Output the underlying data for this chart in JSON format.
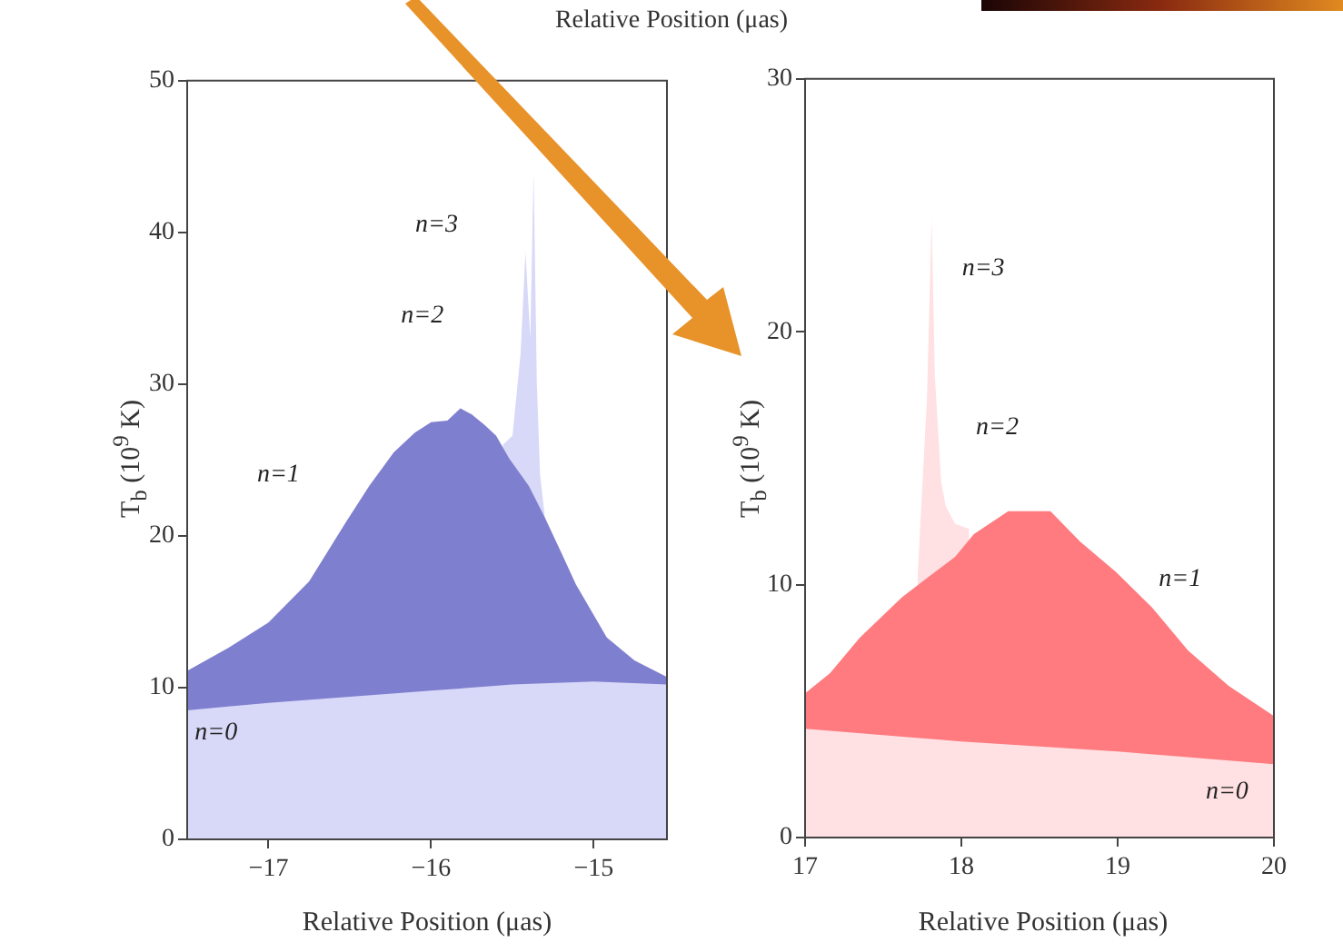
{
  "chart_data": [
    {
      "type": "other",
      "annotations": [
        "Relative Position (μas)"
      ]
    },
    {
      "type": "area",
      "xlabel": "Relative Position (μas)",
      "ylabel": "T$_{b}$ (10$^{9}$ K)",
      "xlim": [
        -17.5,
        -14.55
      ],
      "ylim": [
        0,
        50
      ],
      "xticks": [
        -17,
        -16,
        -15
      ],
      "yticks": [
        0,
        10,
        20,
        30,
        40,
        50
      ],
      "grid": false,
      "legend": false,
      "series": [
        {
          "color": "#d8d8f8",
          "x": [
            -15.56,
            -15.5,
            -15.45,
            -15.42,
            -15.39,
            -15.37,
            -15.35,
            -15.33,
            -15.3
          ],
          "values": [
            26.0,
            26.6,
            32.0,
            38.7,
            33.0,
            44.0,
            30.0,
            24.0,
            21.2
          ]
        },
        {
          "color": "#7f7fd0",
          "x": [
            -17.5,
            -17.25,
            -17,
            -16.75,
            -16.53,
            -16.38,
            -16.23,
            -16.1,
            -16,
            -15.9,
            -15.82,
            -15.75,
            -15.67,
            -15.6,
            -15.52,
            -15.4,
            -15.3,
            -15.2,
            -15.11,
            -14.92,
            -14.75,
            -14.55
          ],
          "values": [
            11.1,
            12.6,
            14.3,
            17.0,
            20.8,
            23.3,
            25.5,
            26.8,
            27.5,
            27.6,
            28.4,
            28.0,
            27.3,
            26.6,
            25.1,
            23.3,
            21.2,
            18.9,
            16.8,
            13.3,
            11.8,
            10.7
          ]
        },
        {
          "color": "#d8d8f8",
          "x": [
            -17.5,
            -17,
            -16.5,
            -16,
            -15.5,
            -15,
            -14.55
          ],
          "values": [
            8.5,
            9.0,
            9.4,
            9.8,
            10.2,
            10.4,
            10.2
          ]
        }
      ],
      "annotations": [
        "n=3",
        "n=2",
        "n=1",
        "n=0"
      ]
    },
    {
      "type": "area",
      "xlabel": "Relative Position (μas)",
      "ylabel": "T$_{b}$ (10$^{9}$ K)",
      "xlim": [
        17,
        20
      ],
      "ylim": [
        0,
        30
      ],
      "xticks": [
        17,
        18,
        19,
        20
      ],
      "yticks": [
        0,
        10,
        20,
        30
      ],
      "grid": false,
      "legend": false,
      "series": [
        {
          "color": "#ffe0e3",
          "x": [
            17.72,
            17.78,
            17.81,
            17.83,
            17.87,
            17.9,
            17.96,
            18.05
          ],
          "values": [
            10.3,
            17.4,
            24.5,
            18.3,
            14.1,
            13.1,
            12.4,
            12.2
          ]
        },
        {
          "color": "#ff7b7f",
          "x": [
            17,
            17.16,
            17.35,
            17.62,
            17.81,
            17.96,
            18.08,
            18.3,
            18.57,
            18.76,
            18.99,
            19.22,
            19.45,
            19.71,
            20
          ],
          "values": [
            5.7,
            6.5,
            7.9,
            9.5,
            10.4,
            11.1,
            12.0,
            12.9,
            12.9,
            11.7,
            10.5,
            9.1,
            7.4,
            6.0,
            4.8
          ]
        },
        {
          "color": "#ffe0e3",
          "x": [
            17,
            18,
            19,
            20
          ],
          "values": [
            4.3,
            3.8,
            3.4,
            2.9
          ]
        }
      ],
      "annotations": [
        "n=3",
        "n=2",
        "n=1",
        "n=0"
      ]
    }
  ]
}
